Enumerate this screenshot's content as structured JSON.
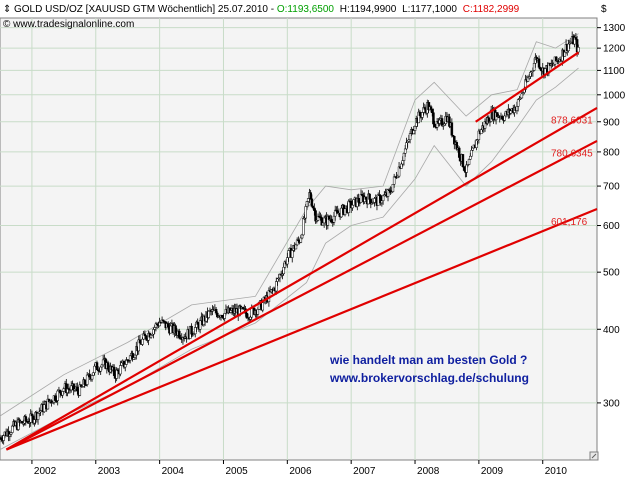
{
  "header": {
    "instrument": "GOLD USD/OZ [XAUUSD GTM  Wöchentlich] 25.07.2010",
    "open": "O:1193,6500",
    "high": "H:1194,9900",
    "low": "L:1177,1000",
    "close": "C:1182,2999",
    "copyright": "© www.tradesignalonline.com",
    "currency_symbol": "$"
  },
  "colors": {
    "open": "#00a000",
    "close": "#e00000",
    "trendline": "#e00000",
    "annotation": "#1020a0",
    "grid": "#c8dcc8",
    "plot_bg": "#f4f4f4"
  },
  "annotation": {
    "line1": "wie handelt man am besten Gold ?",
    "line2": "www.brokervorschlag.de/schulung"
  },
  "chart_data": {
    "type": "candlestick",
    "title": "GOLD USD/OZ [XAUUSD GTM  Wöchentlich] 25.07.2010",
    "y_scale": "log",
    "ylim": [
      240,
      1350
    ],
    "xlim": [
      2001.5,
      2010.85
    ],
    "y_ticks": [
      300,
      400,
      500,
      600,
      700,
      800,
      900,
      1000,
      1100,
      1200,
      1300
    ],
    "x_ticks": [
      "2002",
      "2003",
      "2004",
      "2005",
      "2006",
      "2007",
      "2008",
      "2009",
      "2010"
    ],
    "grid": true,
    "price_series": {
      "x": [
        2001.5,
        2001.75,
        2002.0,
        2002.25,
        2002.5,
        2002.75,
        2003.0,
        2003.15,
        2003.3,
        2003.5,
        2003.75,
        2004.0,
        2004.2,
        2004.4,
        2004.6,
        2004.8,
        2005.0,
        2005.2,
        2005.4,
        2005.6,
        2005.8,
        2006.0,
        2006.2,
        2006.35,
        2006.45,
        2006.6,
        2006.8,
        2007.0,
        2007.2,
        2007.4,
        2007.6,
        2007.8,
        2008.0,
        2008.2,
        2008.35,
        2008.5,
        2008.65,
        2008.8,
        2009.0,
        2009.2,
        2009.4,
        2009.6,
        2009.75,
        2009.9,
        2010.0,
        2010.1,
        2010.25,
        2010.4,
        2010.5,
        2010.56
      ],
      "y": [
        262,
        275,
        282,
        300,
        318,
        315,
        345,
        350,
        335,
        355,
        385,
        412,
        400,
        390,
        405,
        428,
        425,
        430,
        425,
        440,
        470,
        530,
        570,
        680,
        620,
        610,
        630,
        650,
        670,
        660,
        680,
        780,
        900,
        960,
        880,
        920,
        820,
        740,
        860,
        930,
        920,
        960,
        1050,
        1160,
        1100,
        1110,
        1150,
        1220,
        1240,
        1182
      ]
    },
    "bands": {
      "x": [
        2001.5,
        2002.5,
        2003.5,
        2004.5,
        2005.5,
        2006.3,
        2006.6,
        2007.0,
        2007.5,
        2008.0,
        2008.3,
        2008.8,
        2009.2,
        2009.6,
        2009.9,
        2010.2,
        2010.56
      ],
      "upper": [
        285,
        335,
        380,
        440,
        455,
        640,
        700,
        690,
        700,
        980,
        1050,
        920,
        1000,
        1020,
        1230,
        1200,
        1270
      ],
      "lower": [
        250,
        285,
        320,
        370,
        410,
        480,
        560,
        600,
        620,
        720,
        820,
        700,
        770,
        880,
        980,
        1030,
        1110
      ]
    },
    "trendlines": [
      {
        "label": "",
        "from": [
          2008.95,
          900
        ],
        "to": [
          2010.56,
          1180
        ]
      },
      {
        "label": "878,6031",
        "from": [
          2001.6,
          250
        ],
        "to": [
          2010.85,
          950
        ]
      },
      {
        "label": "780,6345",
        "from": [
          2001.6,
          250
        ],
        "to": [
          2010.85,
          835
        ]
      },
      {
        "label": "601,176",
        "from": [
          2001.6,
          250
        ],
        "to": [
          2010.85,
          640
        ]
      }
    ]
  }
}
